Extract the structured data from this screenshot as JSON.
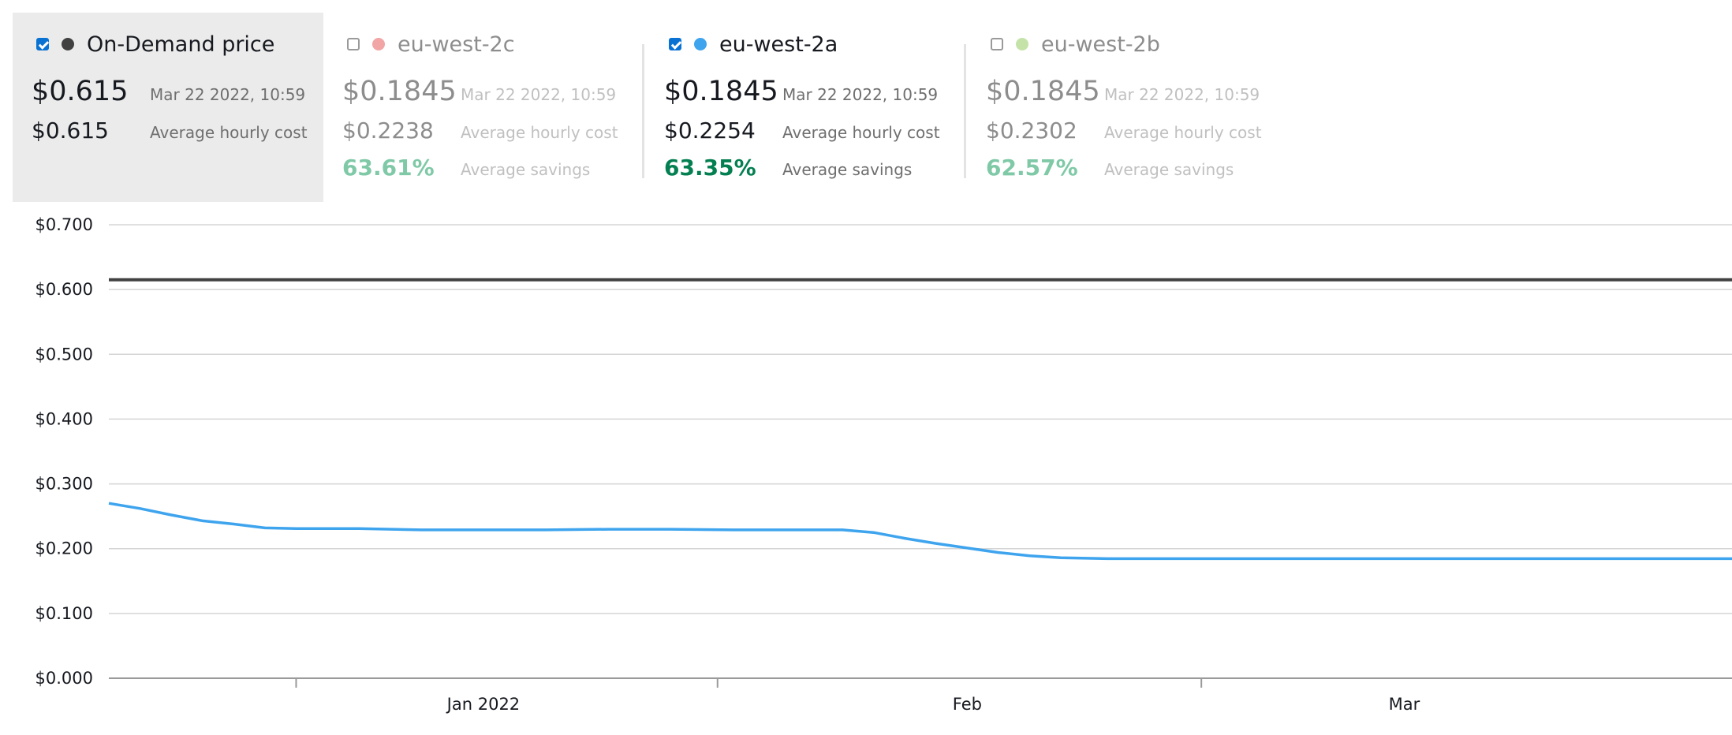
{
  "legend": {
    "on_demand": {
      "name": "On-Demand price",
      "checked": true,
      "dot_color": "#414141",
      "price": "$0.615",
      "timestamp": "Mar 22 2022, 10:59",
      "avg_cost": "$0.615",
      "avg_cost_label": "Average hourly cost"
    },
    "zones": [
      {
        "name": "eu-west-2c",
        "checked": false,
        "dot_color": "#f1a5a5",
        "price": "$0.1845",
        "timestamp": "Mar 22 2022, 10:59",
        "avg_cost": "$0.2238",
        "avg_cost_label": "Average hourly cost",
        "savings": "63.61%",
        "savings_label": "Average savings"
      },
      {
        "name": "eu-west-2a",
        "checked": true,
        "dot_color": "#3ea4ee",
        "price": "$0.1845",
        "timestamp": "Mar 22 2022, 10:59",
        "avg_cost": "$0.2254",
        "avg_cost_label": "Average hourly cost",
        "savings": "63.35%",
        "savings_label": "Average savings"
      },
      {
        "name": "eu-west-2b",
        "checked": false,
        "dot_color": "#c5e3a8",
        "price": "$0.1845",
        "timestamp": "Mar 22 2022, 10:59",
        "avg_cost": "$0.2302",
        "avg_cost_label": "Average hourly cost",
        "savings": "62.57%",
        "savings_label": "Average savings"
      }
    ]
  },
  "chart_data": {
    "type": "line",
    "title": "",
    "xlabel": "",
    "ylabel": "",
    "ylim": [
      0,
      0.7
    ],
    "yticks": [
      0,
      0.1,
      0.2,
      0.3,
      0.4,
      0.5,
      0.6,
      0.7
    ],
    "ytick_labels": [
      "$0.000",
      "$0.100",
      "$0.200",
      "$0.300",
      "$0.400",
      "$0.500",
      "$0.600",
      "$0.700"
    ],
    "xlim": [
      "2021-12-08",
      "2022-03-22"
    ],
    "xtick_labels": [
      {
        "label": "Jan 2022",
        "date": "2022-01-01"
      },
      {
        "label": "Feb",
        "date": "2022-02-01"
      },
      {
        "label": "Mar",
        "date": "2022-03-01"
      }
    ],
    "xtick_marks": [
      "2021-12-20",
      "2022-01-16",
      "2022-02-16"
    ],
    "grid": true,
    "series": [
      {
        "name": "On-Demand price",
        "color": "#414141",
        "points": [
          [
            "2021-12-08",
            0.615
          ],
          [
            "2022-03-22",
            0.615
          ]
        ]
      },
      {
        "name": "eu-west-2a",
        "color": "#3ea4ee",
        "points": [
          [
            "2021-12-08",
            0.27
          ],
          [
            "2021-12-10",
            0.262
          ],
          [
            "2021-12-12",
            0.252
          ],
          [
            "2021-12-14",
            0.243
          ],
          [
            "2021-12-16",
            0.238
          ],
          [
            "2021-12-18",
            0.232
          ],
          [
            "2021-12-20",
            0.231
          ],
          [
            "2021-12-24",
            0.231
          ],
          [
            "2021-12-28",
            0.229
          ],
          [
            "2022-01-01",
            0.229
          ],
          [
            "2022-01-05",
            0.229
          ],
          [
            "2022-01-09",
            0.23
          ],
          [
            "2022-01-13",
            0.23
          ],
          [
            "2022-01-17",
            0.229
          ],
          [
            "2022-01-21",
            0.229
          ],
          [
            "2022-01-24",
            0.229
          ],
          [
            "2022-01-26",
            0.225
          ],
          [
            "2022-01-28",
            0.216
          ],
          [
            "2022-01-30",
            0.208
          ],
          [
            "2022-02-01",
            0.201
          ],
          [
            "2022-02-03",
            0.194
          ],
          [
            "2022-02-05",
            0.189
          ],
          [
            "2022-02-07",
            0.186
          ],
          [
            "2022-02-10",
            0.1845
          ],
          [
            "2022-02-20",
            0.1845
          ],
          [
            "2022-03-01",
            0.1845
          ],
          [
            "2022-03-22",
            0.1845
          ]
        ]
      }
    ]
  }
}
